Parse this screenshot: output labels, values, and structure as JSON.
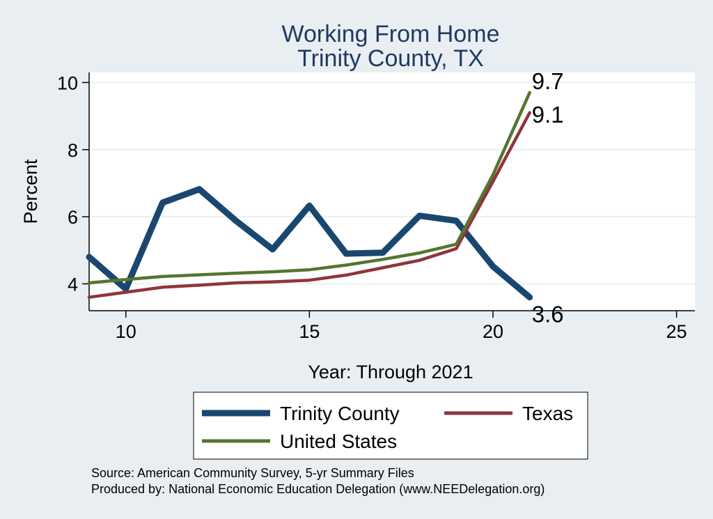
{
  "chart_data": {
    "type": "line",
    "title": "Working From Home",
    "subtitle": "Trinity County, TX",
    "xlabel": "Year: Through 2021",
    "ylabel": "Percent",
    "xlim": [
      9,
      25.5
    ],
    "ylim": [
      3.2,
      10.3
    ],
    "xticks": [
      10,
      15,
      20,
      25
    ],
    "yticks": [
      4,
      6,
      8,
      10
    ],
    "grid": true,
    "legend_position": "bottom",
    "x": [
      9,
      10,
      11,
      12,
      13,
      14,
      15,
      16,
      17,
      18,
      19,
      20,
      21
    ],
    "series": [
      {
        "name": "Trinity County",
        "color": "#1a476f",
        "values": [
          4.8,
          3.85,
          6.42,
          6.82,
          5.88,
          5.03,
          6.33,
          4.9,
          4.93,
          6.03,
          5.88,
          4.52,
          3.6
        ],
        "end_label": "3.6"
      },
      {
        "name": "Texas",
        "color": "#90353b",
        "values": [
          3.6,
          3.75,
          3.9,
          3.96,
          4.03,
          4.06,
          4.11,
          4.26,
          4.48,
          4.7,
          5.05,
          7.05,
          9.1
        ],
        "end_label": "9.1"
      },
      {
        "name": "United States",
        "color": "#55752f",
        "values": [
          4.03,
          4.13,
          4.22,
          4.27,
          4.32,
          4.36,
          4.42,
          4.56,
          4.73,
          4.92,
          5.18,
          7.25,
          9.7
        ],
        "end_label": "9.7"
      }
    ]
  },
  "notes": {
    "source": "Source: American Community Survey, 5-yr Summary Files",
    "produced": "Produced by: National Economic Education Delegation (www.NEEDelegation.org)"
  }
}
